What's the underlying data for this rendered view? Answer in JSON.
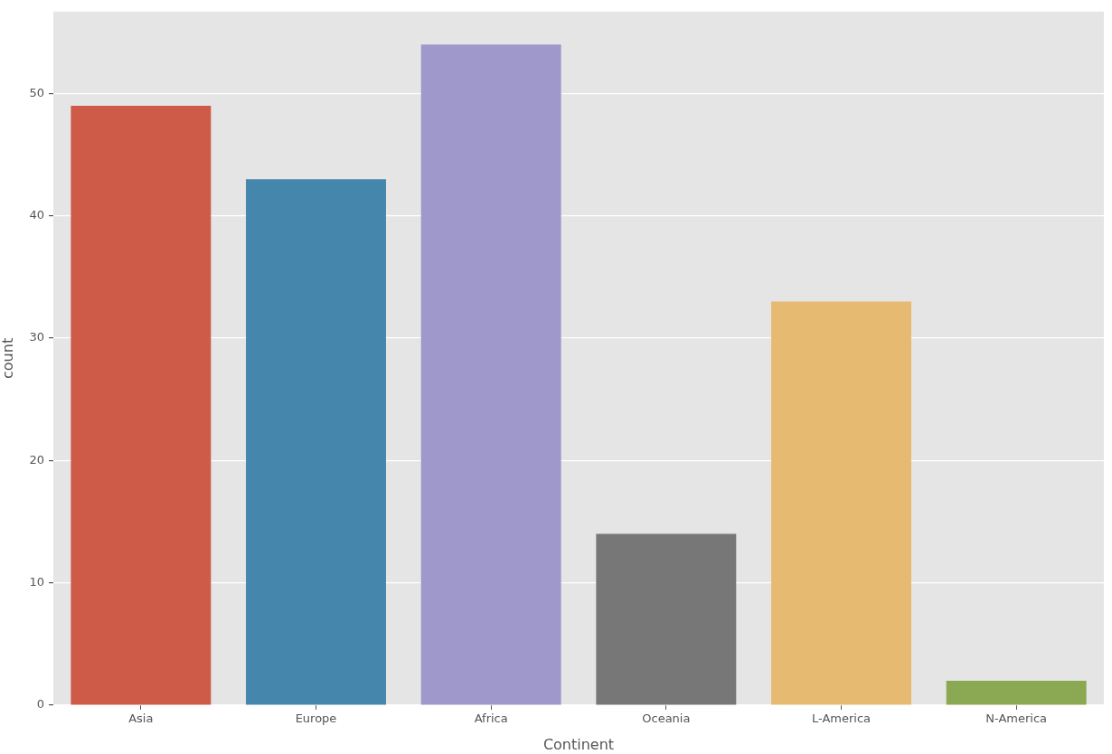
{
  "chart_data": {
    "type": "bar",
    "xlabel": "Continent",
    "ylabel": "count",
    "categories": [
      "Asia",
      "Europe",
      "Africa",
      "Oceania",
      "L-America",
      "N-America"
    ],
    "values": [
      49,
      43,
      54,
      14,
      33,
      2
    ],
    "colors": [
      "#ce5b48",
      "#4586ad",
      "#9f98cb",
      "#777777",
      "#e7ba72",
      "#8ba852"
    ],
    "ylim": [
      0,
      56.7
    ],
    "yticks": [
      0,
      10,
      20,
      30,
      40,
      50
    ],
    "grid": "y"
  }
}
